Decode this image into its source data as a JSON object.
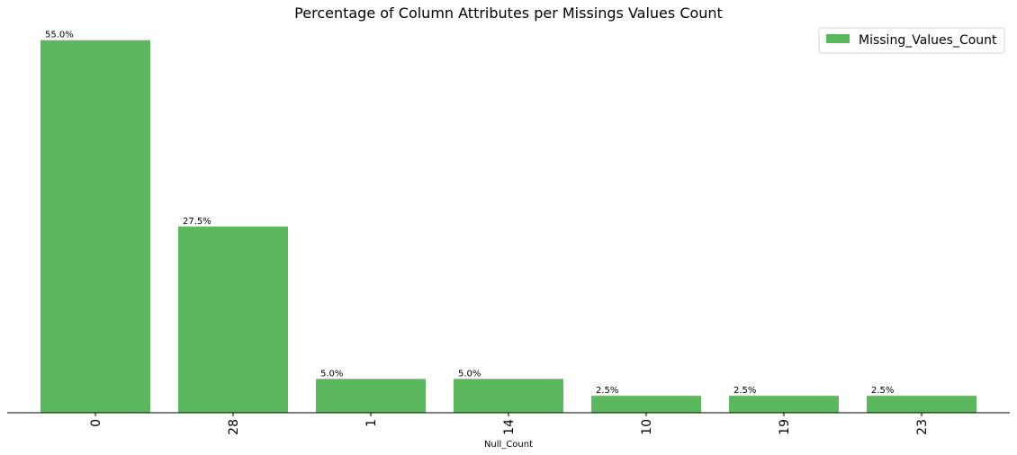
{
  "chart_data": {
    "type": "bar",
    "title": "Percentage of Column Attributes per Missings Values Count",
    "xlabel": "Null_Count",
    "ylabel": "",
    "categories": [
      "0",
      "28",
      "1",
      "14",
      "10",
      "19",
      "23"
    ],
    "series": [
      {
        "name": "Missing_Values_Count",
        "values": [
          55.0,
          27.5,
          5.0,
          5.0,
          2.5,
          2.5,
          2.5
        ],
        "labels": [
          "55.0%",
          "27.5%",
          "5.0%",
          "5.0%",
          "2.5%",
          "2.5%",
          "2.5%"
        ]
      }
    ],
    "ylim": [
      0,
      57.75
    ],
    "grid": false,
    "legend": "top-right",
    "tick_rotation": -90,
    "colors": {
      "bar": "#5cb85c",
      "axis": "#000000"
    }
  }
}
